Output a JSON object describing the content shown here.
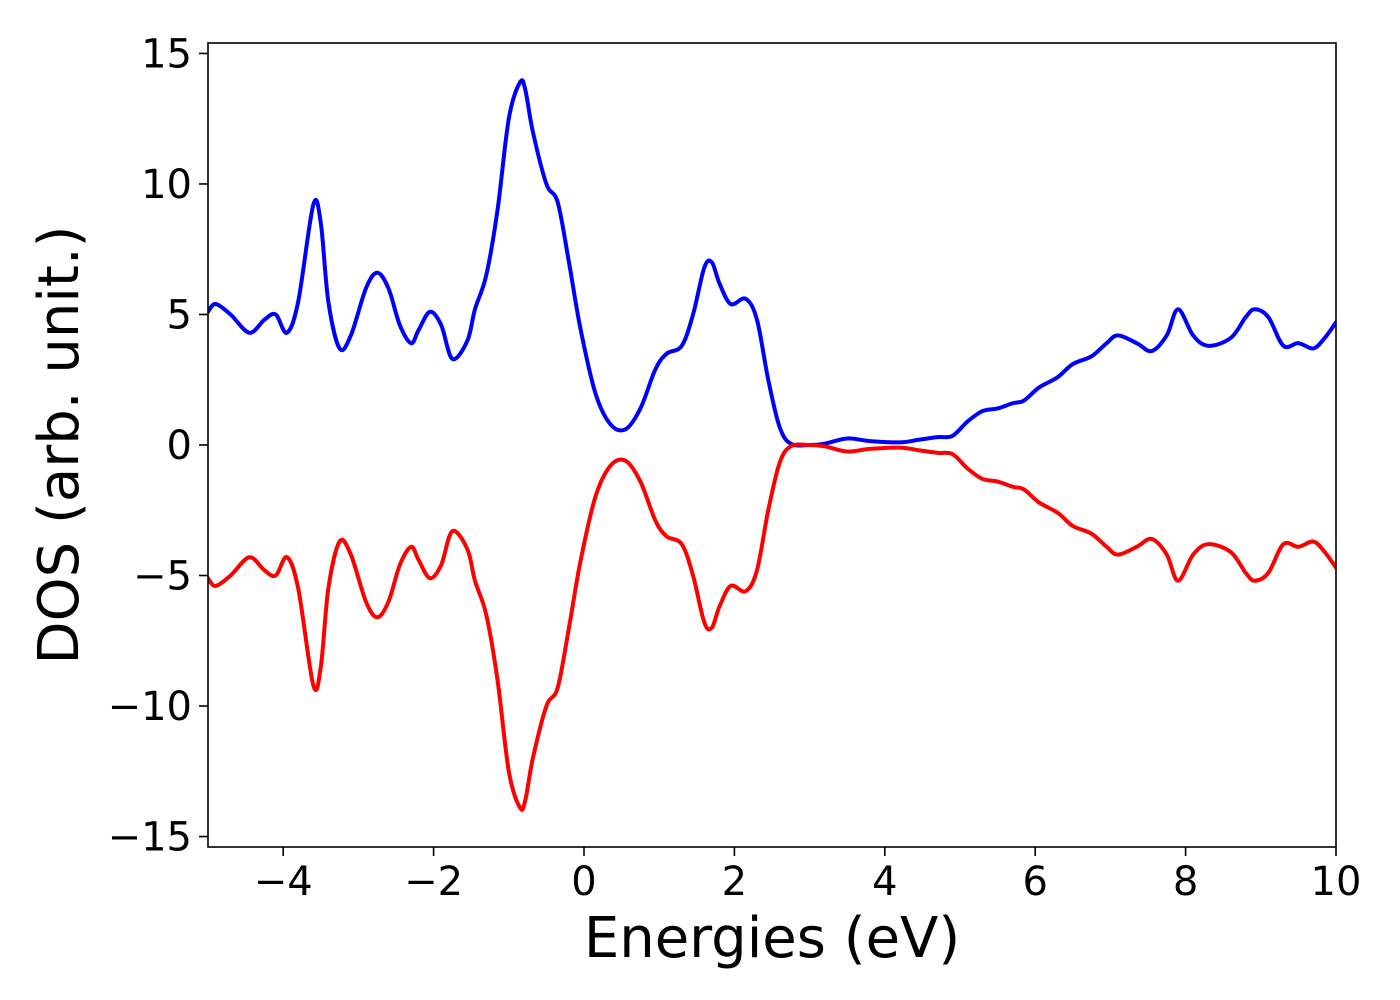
{
  "chart_data": {
    "type": "line",
    "xlabel": "Energies (eV)",
    "ylabel": "DOS (arb. unit.)",
    "xlim": [
      -5,
      10
    ],
    "ylim": [
      -15.4,
      15.4
    ],
    "xticks": [
      -4,
      -2,
      0,
      2,
      4,
      6,
      8,
      10
    ],
    "xtick_labels": [
      "−4",
      "−2",
      "0",
      "2",
      "4",
      "6",
      "8",
      "10"
    ],
    "yticks": [
      -15,
      -10,
      -5,
      0,
      5,
      10,
      15
    ],
    "ytick_labels": [
      "−15",
      "−10",
      "−5",
      "0",
      "5",
      "10",
      "15"
    ],
    "grid": false,
    "series": [
      {
        "color": "#0000ff",
        "x": [
          -5.0,
          -4.9,
          -4.7,
          -4.45,
          -4.25,
          -4.1,
          -3.95,
          -3.8,
          -3.6,
          -3.5,
          -3.4,
          -3.25,
          -3.1,
          -2.9,
          -2.75,
          -2.6,
          -2.45,
          -2.3,
          -2.2,
          -2.05,
          -1.9,
          -1.75,
          -1.55,
          -1.45,
          -1.3,
          -1.15,
          -1.0,
          -0.85,
          -0.78,
          -0.68,
          -0.5,
          -0.35,
          -0.2,
          -0.05,
          0.15,
          0.35,
          0.55,
          0.75,
          0.95,
          1.1,
          1.3,
          1.45,
          1.6,
          1.7,
          1.8,
          1.95,
          2.15,
          2.3,
          2.45,
          2.6,
          2.75,
          3.0,
          3.2,
          3.5,
          3.8,
          4.2,
          4.45,
          4.7,
          4.9,
          5.1,
          5.3,
          5.5,
          5.7,
          5.85,
          6.05,
          6.3,
          6.5,
          6.75,
          6.95,
          7.1,
          7.35,
          7.55,
          7.75,
          7.9,
          8.1,
          8.3,
          8.6,
          8.8,
          8.92,
          9.1,
          9.3,
          9.5,
          9.7,
          9.85,
          10.0
        ],
        "y": [
          5.1,
          5.4,
          5.0,
          4.3,
          4.8,
          5.0,
          4.3,
          5.5,
          9.2,
          8.5,
          5.5,
          3.7,
          4.2,
          6.0,
          6.6,
          6.0,
          4.6,
          3.9,
          4.4,
          5.1,
          4.6,
          3.3,
          4.0,
          5.2,
          6.5,
          9.0,
          12.5,
          13.9,
          13.6,
          12.0,
          10.0,
          9.3,
          7.0,
          4.5,
          2.0,
          0.8,
          0.6,
          1.4,
          2.9,
          3.5,
          3.8,
          5.0,
          6.8,
          7.0,
          6.2,
          5.4,
          5.6,
          4.8,
          2.5,
          0.7,
          0.05,
          0.0,
          0.05,
          0.25,
          0.15,
          0.1,
          0.2,
          0.3,
          0.35,
          0.9,
          1.3,
          1.4,
          1.6,
          1.7,
          2.2,
          2.6,
          3.1,
          3.4,
          3.9,
          4.2,
          3.9,
          3.6,
          4.2,
          5.2,
          4.2,
          3.8,
          4.1,
          4.9,
          5.2,
          4.9,
          3.8,
          3.9,
          3.7,
          4.1,
          4.7
        ]
      },
      {
        "color": "#ff0000",
        "x": [
          -5.0,
          -4.9,
          -4.7,
          -4.45,
          -4.25,
          -4.1,
          -3.95,
          -3.8,
          -3.6,
          -3.5,
          -3.4,
          -3.25,
          -3.1,
          -2.9,
          -2.75,
          -2.6,
          -2.45,
          -2.3,
          -2.2,
          -2.05,
          -1.9,
          -1.75,
          -1.55,
          -1.45,
          -1.3,
          -1.15,
          -1.0,
          -0.85,
          -0.78,
          -0.68,
          -0.5,
          -0.35,
          -0.2,
          -0.05,
          0.15,
          0.35,
          0.55,
          0.75,
          0.95,
          1.1,
          1.3,
          1.45,
          1.6,
          1.7,
          1.8,
          1.95,
          2.15,
          2.3,
          2.45,
          2.6,
          2.75,
          3.0,
          3.2,
          3.5,
          3.8,
          4.2,
          4.45,
          4.7,
          4.9,
          5.1,
          5.3,
          5.5,
          5.7,
          5.85,
          6.05,
          6.3,
          6.5,
          6.75,
          6.95,
          7.1,
          7.35,
          7.55,
          7.75,
          7.9,
          8.1,
          8.3,
          8.6,
          8.8,
          8.92,
          9.1,
          9.3,
          9.5,
          9.7,
          9.85,
          10.0
        ],
        "y": [
          -5.1,
          -5.4,
          -5.0,
          -4.3,
          -4.8,
          -5.0,
          -4.3,
          -5.5,
          -9.2,
          -8.5,
          -5.5,
          -3.7,
          -4.2,
          -6.0,
          -6.6,
          -6.0,
          -4.6,
          -3.9,
          -4.4,
          -5.1,
          -4.6,
          -3.3,
          -4.0,
          -5.2,
          -6.5,
          -9.0,
          -12.5,
          -13.9,
          -13.6,
          -12.0,
          -10.0,
          -9.3,
          -7.0,
          -4.5,
          -2.0,
          -0.8,
          -0.6,
          -1.4,
          -2.9,
          -3.5,
          -3.8,
          -5.0,
          -6.8,
          -7.0,
          -6.2,
          -5.4,
          -5.6,
          -4.8,
          -2.5,
          -0.7,
          -0.05,
          0.0,
          -0.05,
          -0.25,
          -0.15,
          -0.1,
          -0.2,
          -0.3,
          -0.35,
          -0.9,
          -1.3,
          -1.4,
          -1.6,
          -1.7,
          -2.2,
          -2.6,
          -3.1,
          -3.4,
          -3.9,
          -4.2,
          -3.9,
          -3.6,
          -4.2,
          -5.2,
          -4.2,
          -3.8,
          -4.1,
          -4.9,
          -5.2,
          -4.9,
          -3.8,
          -3.9,
          -3.7,
          -4.1,
          -4.7
        ]
      }
    ]
  }
}
